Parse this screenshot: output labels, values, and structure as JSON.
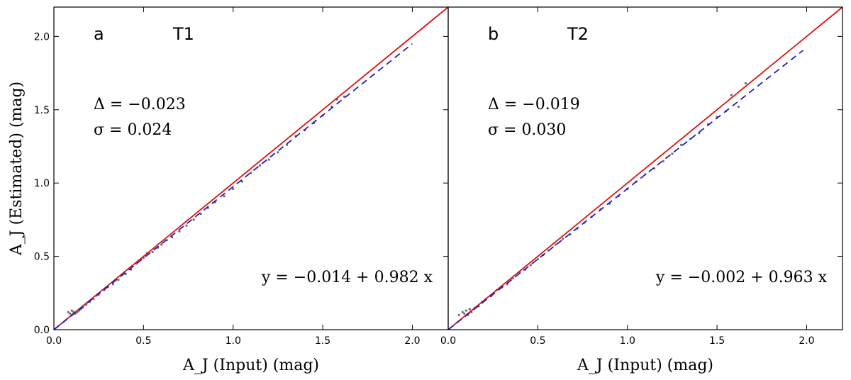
{
  "chart_data": [
    {
      "type": "scatter",
      "panel_letter": "a",
      "panel_tag": "T1",
      "stats": {
        "delta": "Δ = −0.023",
        "sigma": "σ = 0.024"
      },
      "fit_label": "y = −0.014 + 0.982 x",
      "fit": {
        "intercept": -0.014,
        "slope": 0.982,
        "x_range": [
          0.0,
          2.0
        ]
      },
      "one_to_one": {
        "x_range": [
          0.0,
          2.2
        ]
      },
      "xlabel": "A_J (Input) (mag)",
      "ylabel": "A_J (Estimated) (mag)",
      "xlim": [
        0,
        2.2
      ],
      "ylim": [
        0,
        2.2
      ],
      "xticks": [
        0.0,
        0.5,
        1.0,
        1.5,
        2.0
      ],
      "yticks": [
        0.0,
        0.5,
        1.0,
        1.5,
        2.0
      ],
      "series": [
        {
          "x": [
            0.08,
            0.09,
            0.1,
            0.1,
            0.11,
            0.12,
            0.13,
            0.14,
            0.15,
            0.16,
            0.18,
            0.2,
            0.22,
            0.25,
            0.28,
            0.3,
            0.33,
            0.36,
            0.4,
            0.43,
            0.46,
            0.5,
            0.52,
            0.55,
            0.58,
            0.6,
            0.63,
            0.66,
            0.7,
            0.74,
            0.78,
            0.82,
            0.86,
            0.9,
            0.95,
            1.0,
            1.05,
            1.1,
            1.15,
            1.2,
            1.25,
            1.3,
            1.35,
            1.4,
            1.45,
            1.5,
            1.55,
            1.58,
            1.62
          ],
          "y": [
            0.12,
            0.11,
            0.13,
            0.1,
            0.12,
            0.11,
            0.12,
            0.13,
            0.14,
            0.15,
            0.17,
            0.19,
            0.21,
            0.24,
            0.27,
            0.29,
            0.31,
            0.34,
            0.38,
            0.41,
            0.45,
            0.49,
            0.52,
            0.53,
            0.56,
            0.58,
            0.61,
            0.63,
            0.67,
            0.71,
            0.75,
            0.79,
            0.83,
            0.87,
            0.91,
            0.96,
            1.01,
            1.07,
            1.12,
            1.16,
            1.21,
            1.26,
            1.32,
            1.36,
            1.41,
            1.46,
            1.52,
            1.57,
            1.59
          ]
        }
      ],
      "colors": {
        "points": "#6b6b6b",
        "fit_line": "#1f1fbf",
        "one_to_one_line": "#e01010"
      }
    },
    {
      "type": "scatter",
      "panel_letter": "b",
      "panel_tag": "T2",
      "stats": {
        "delta": "Δ = −0.019",
        "sigma": "σ = 0.030"
      },
      "fit_label": "y = −0.002 + 0.963 x",
      "fit": {
        "intercept": -0.002,
        "slope": 0.963,
        "x_range": [
          0.0,
          1.98
        ]
      },
      "one_to_one": {
        "x_range": [
          0.0,
          2.2
        ]
      },
      "xlabel": "A_J (Input) (mag)",
      "ylabel": "",
      "xlim": [
        0,
        2.2
      ],
      "ylim": [
        0,
        2.2
      ],
      "xticks": [
        0.0,
        0.5,
        1.0,
        1.5,
        2.0
      ],
      "yticks": [],
      "series": [
        {
          "x": [
            0.06,
            0.08,
            0.09,
            0.1,
            0.11,
            0.12,
            0.13,
            0.15,
            0.17,
            0.19,
            0.21,
            0.24,
            0.27,
            0.3,
            0.33,
            0.36,
            0.4,
            0.43,
            0.46,
            0.5,
            0.53,
            0.56,
            0.6,
            0.64,
            0.68,
            0.72,
            0.76,
            0.8,
            0.85,
            0.9,
            0.95,
            1.0,
            1.05,
            1.1,
            1.15,
            1.2,
            1.25,
            1.3,
            1.35,
            1.4,
            1.45,
            1.5,
            1.55,
            1.58,
            1.62,
            1.66
          ],
          "y": [
            0.1,
            0.12,
            0.11,
            0.13,
            0.1,
            0.14,
            0.12,
            0.15,
            0.16,
            0.19,
            0.21,
            0.23,
            0.27,
            0.29,
            0.31,
            0.35,
            0.39,
            0.41,
            0.44,
            0.48,
            0.51,
            0.54,
            0.58,
            0.62,
            0.65,
            0.69,
            0.73,
            0.77,
            0.82,
            0.86,
            0.91,
            0.96,
            1.01,
            1.06,
            1.1,
            1.15,
            1.2,
            1.26,
            1.3,
            1.34,
            1.4,
            1.45,
            1.49,
            1.6,
            1.52,
            1.68
          ]
        }
      ],
      "colors": {
        "points": "#6b6b6b",
        "fit_line": "#1f1fbf",
        "one_to_one_line": "#e01010"
      }
    }
  ]
}
